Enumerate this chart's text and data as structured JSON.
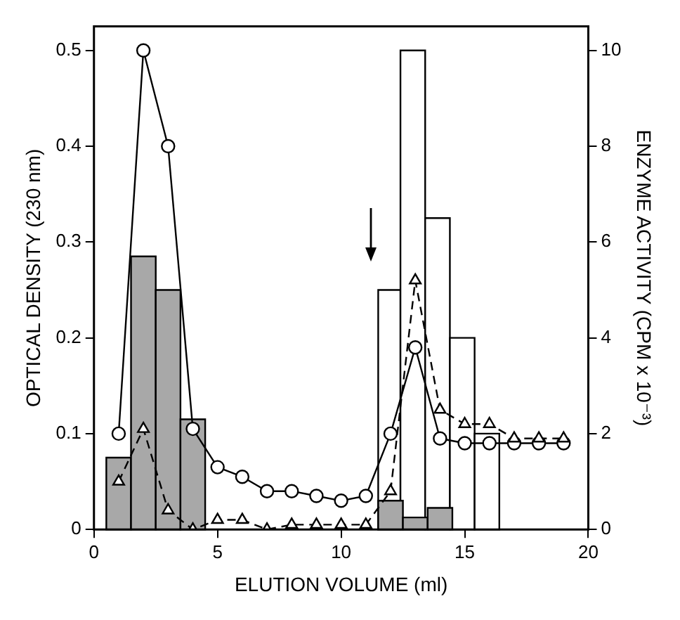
{
  "chart_data": {
    "type": "line",
    "xlabel": "ELUTION VOLUME (ml)",
    "ylabel": "OPTICAL DENSITY (230 nm)",
    "y2label": "ENZYME ACTIVITY (CPM x 10⁻³)",
    "xlim": [
      0,
      20
    ],
    "xticks": [
      0,
      5,
      10,
      15,
      20
    ],
    "ylim": [
      0,
      0.525
    ],
    "yticks": [
      0,
      0.1,
      0.2,
      0.3,
      0.4,
      0.5
    ],
    "y2lim": [
      0,
      10.5
    ],
    "y2ticks": [
      0,
      2,
      4,
      6,
      8,
      10
    ],
    "series": [
      {
        "type": "histogram",
        "axis": "y2",
        "color": "#ffffff",
        "bins": [
          11.5,
          12.4,
          13.4,
          14.4,
          15.4,
          16.4
        ],
        "values": [
          5,
          10,
          6.5,
          4,
          2
        ]
      },
      {
        "type": "histogram",
        "axis": "y2",
        "color": "#a8a8a8",
        "bins": [
          0.5,
          1.5,
          2.5,
          3.5,
          4.5,
          11.5,
          12.5,
          13.5,
          14.5
        ],
        "values": [
          1.5,
          5.7,
          5,
          2.3,
          null,
          0.6,
          0.25,
          0.45
        ]
      },
      {
        "color": "#000000",
        "marker": "circle",
        "line_style": "solid",
        "x": [
          1,
          2,
          3,
          4,
          5,
          6,
          7,
          8,
          9,
          10,
          11,
          12,
          13,
          14,
          15,
          16,
          17,
          18,
          19
        ],
        "values": [
          0.1,
          0.5,
          0.4,
          0.105,
          0.065,
          0.055,
          0.04,
          0.04,
          0.035,
          0.03,
          0.035,
          0.1,
          0.19,
          0.095,
          0.09,
          0.09,
          0.09,
          0.09,
          0.09
        ]
      },
      {
        "color": "#000000",
        "marker": "triangle",
        "line_style": "dashed",
        "x": [
          1,
          2,
          3,
          4,
          5,
          6,
          7,
          8,
          9,
          10,
          11,
          12,
          13,
          14,
          15,
          16,
          17,
          18,
          19
        ],
        "values": [
          0.05,
          0.105,
          0.02,
          0,
          0.01,
          0.01,
          0,
          0.005,
          0.005,
          0.005,
          0.005,
          0.04,
          0.26,
          0.125,
          0.11,
          0.11,
          0.095,
          0.095,
          0.095
        ]
      }
    ]
  }
}
